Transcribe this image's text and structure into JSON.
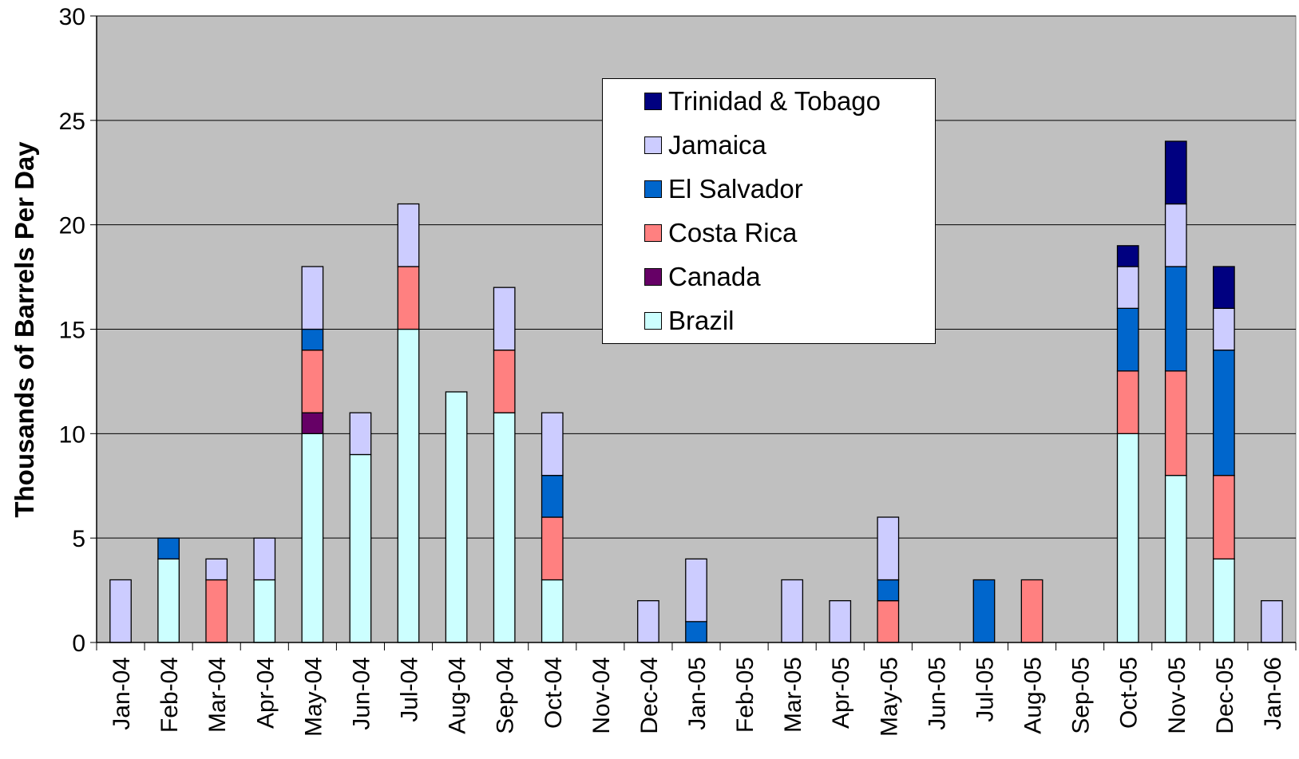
{
  "chart_data": {
    "type": "bar",
    "stacked": true,
    "title": "",
    "xlabel": "",
    "ylabel": "Thousands of Barrels Per Day",
    "ylim": [
      0,
      30
    ],
    "yticks": [
      "0",
      "5",
      "10",
      "15",
      "20",
      "25",
      "30"
    ],
    "grid": "horizontal",
    "legend_position": "top-center",
    "plot_background": "#c0c0c0",
    "categories": [
      "Jan-04",
      "Feb-04",
      "Mar-04",
      "Apr-04",
      "May-04",
      "Jun-04",
      "Jul-04",
      "Aug-04",
      "Sep-04",
      "Oct-04",
      "Nov-04",
      "Dec-04",
      "Jan-05",
      "Feb-05",
      "Mar-05",
      "Apr-05",
      "May-05",
      "Jun-05",
      "Jul-05",
      "Aug-05",
      "Sep-05",
      "Oct-05",
      "Nov-05",
      "Dec-05",
      "Jan-06"
    ],
    "series": [
      {
        "name": "Brazil",
        "color": "#ccffff",
        "values": [
          0,
          4,
          0,
          3,
          10,
          9,
          15,
          12,
          11,
          3,
          0,
          0,
          0,
          0,
          0,
          0,
          0,
          0,
          0,
          0,
          0,
          10,
          8,
          4,
          0
        ]
      },
      {
        "name": "Canada",
        "color": "#660066",
        "values": [
          0,
          0,
          0,
          0,
          1,
          0,
          0,
          0,
          0,
          0,
          0,
          0,
          0,
          0,
          0,
          0,
          0,
          0,
          0,
          0,
          0,
          0,
          0,
          0,
          0
        ]
      },
      {
        "name": "Costa Rica",
        "color": "#ff8080",
        "values": [
          0,
          0,
          3,
          0,
          3,
          0,
          3,
          0,
          3,
          3,
          0,
          0,
          0,
          0,
          0,
          0,
          2,
          0,
          0,
          3,
          0,
          3,
          5,
          4,
          0
        ]
      },
      {
        "name": "El Salvador",
        "color": "#0066cc",
        "values": [
          0,
          1,
          0,
          0,
          1,
          0,
          0,
          0,
          0,
          2,
          0,
          0,
          1,
          0,
          0,
          0,
          1,
          0,
          3,
          0,
          0,
          3,
          5,
          6,
          0
        ]
      },
      {
        "name": "Jamaica",
        "color": "#ccccff",
        "values": [
          3,
          0,
          1,
          2,
          3,
          2,
          3,
          0,
          3,
          3,
          0,
          2,
          3,
          0,
          3,
          2,
          3,
          0,
          0,
          0,
          0,
          2,
          3,
          2,
          2
        ]
      },
      {
        "name": "Trinidad & Tobago",
        "color": "#000080",
        "values": [
          0,
          0,
          0,
          0,
          0,
          0,
          0,
          0,
          0,
          0,
          0,
          0,
          0,
          0,
          0,
          0,
          0,
          0,
          0,
          0,
          0,
          1,
          3,
          2,
          0
        ]
      }
    ]
  }
}
